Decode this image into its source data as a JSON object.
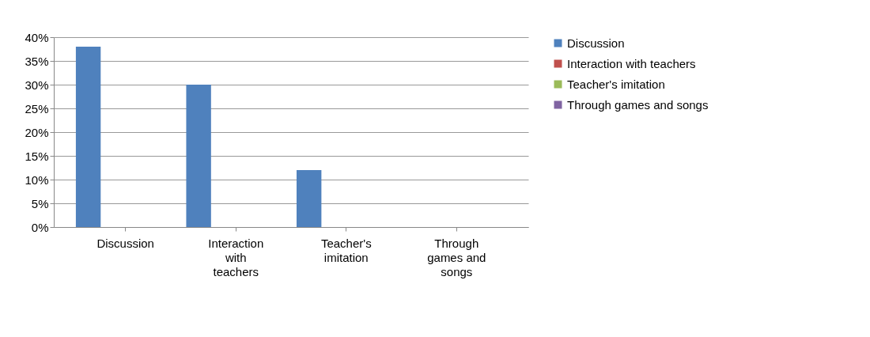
{
  "chart_data": {
    "type": "bar",
    "categories": [
      "Discussion",
      "Interaction with teachers",
      "Teacher's imitation",
      "Through games and songs"
    ],
    "series": [
      {
        "name": "Discussion",
        "color": "#4f81bd",
        "values": [
          38,
          30,
          12,
          0
        ]
      },
      {
        "name": "Interaction with teachers",
        "color": "#c0504d",
        "values": [
          null,
          null,
          null,
          null
        ]
      },
      {
        "name": "Teacher's imitation",
        "color": "#9bbb59",
        "values": [
          null,
          null,
          null,
          null
        ]
      },
      {
        "name": "Through games and songs",
        "color": "#8064a2",
        "values": [
          null,
          null,
          null,
          null
        ]
      }
    ],
    "ylim": [
      0,
      40
    ],
    "yticks": [
      {
        "value": 0,
        "label": "0%"
      },
      {
        "value": 5,
        "label": "5%"
      },
      {
        "value": 10,
        "label": "10%"
      },
      {
        "value": 15,
        "label": "15%"
      },
      {
        "value": 20,
        "label": "20%"
      },
      {
        "value": 25,
        "label": "25%"
      },
      {
        "value": 30,
        "label": "30%"
      },
      {
        "value": 35,
        "label": "35%"
      },
      {
        "value": 40,
        "label": "40%"
      }
    ],
    "grid": "y",
    "legend": "right"
  }
}
